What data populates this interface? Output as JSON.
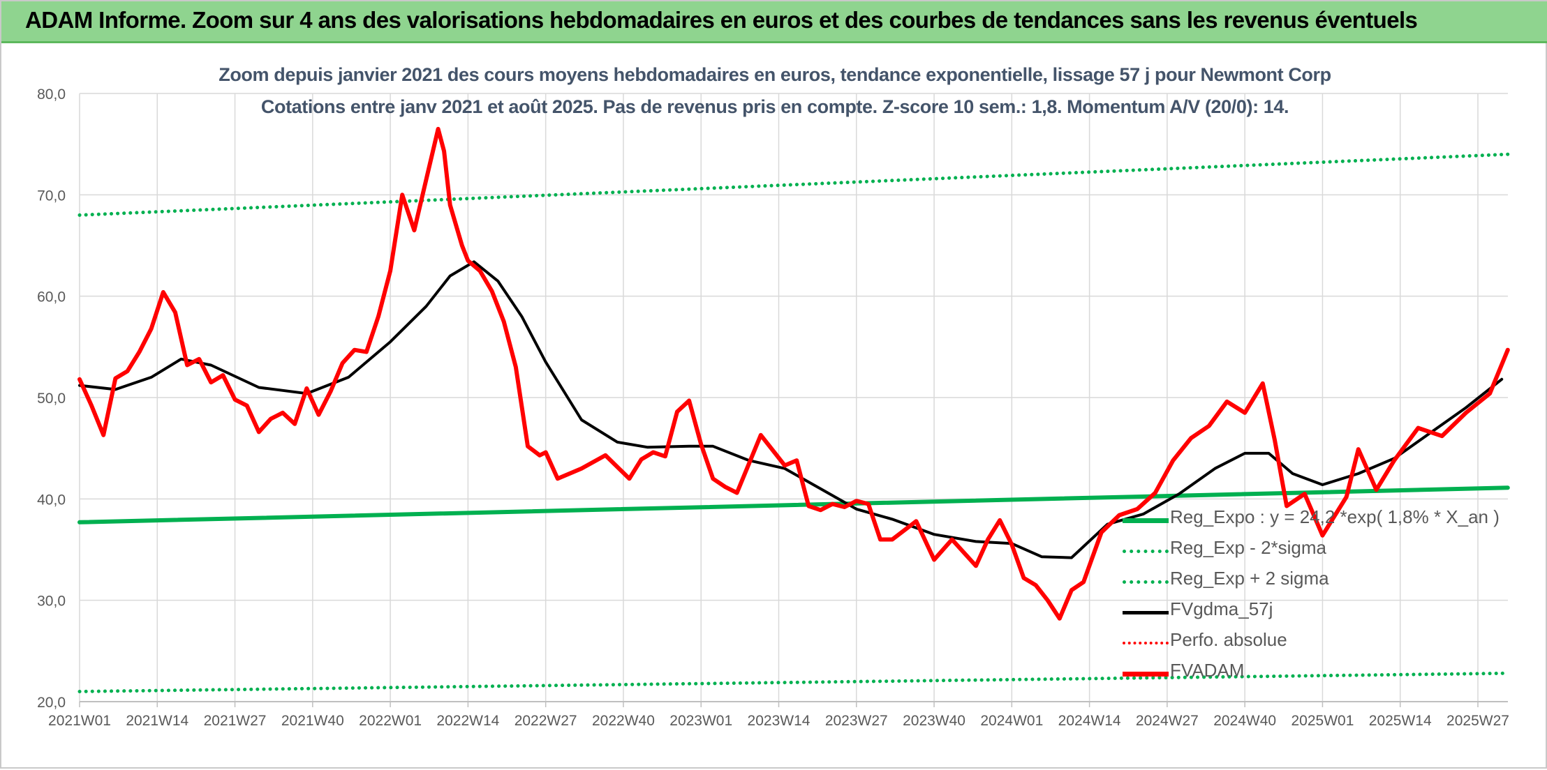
{
  "banner": {
    "title": "ADAM Informe. Zoom sur 4 ans des valorisations hebdomadaires en euros et des courbes de tendances sans les revenus éventuels"
  },
  "chart_data": {
    "type": "line",
    "title": "Zoom depuis janvier 2021 des cours moyens hebdomadaires en euros, tendance exponentielle, lissage 57 j pour Newmont Corp",
    "subtitle": "Cotations entre janv 2021 et août 2025. Pas de revenus pris en compte. Z-score 10 sem.: 1,8. Momentum A/V (20/0): 14.",
    "xlabel": "",
    "ylabel": "",
    "ylim": [
      20,
      80
    ],
    "y_ticks": [
      "20,0",
      "30,0",
      "40,0",
      "50,0",
      "60,0",
      "70,0",
      "80,0"
    ],
    "x_ticks": [
      "2021W01",
      "2021W14",
      "2021W27",
      "2021W40",
      "2022W01",
      "2022W14",
      "2022W27",
      "2022W40",
      "2023W01",
      "2023W14",
      "2023W27",
      "2023W40",
      "2024W01",
      "2024W14",
      "2024W27",
      "2024W40",
      "2025W01",
      "2025W14",
      "2025W27"
    ],
    "x_tick_index": [
      0,
      13,
      26,
      39,
      52,
      65,
      78,
      91,
      104,
      117,
      130,
      143,
      156,
      169,
      182,
      195,
      208,
      221,
      234
    ],
    "n_weeks": 240,
    "grid": true,
    "legend_position": "bottom-right",
    "series": [
      {
        "name": "Reg_Expo : y = 24,2 *exp( 1,8% *  X_an )",
        "style": "solid",
        "color": "#00b050",
        "x": [
          0,
          239
        ],
        "values": [
          37.7,
          41.1
        ]
      },
      {
        "name": "Reg_Exp - 2*sigma",
        "style": "dotted",
        "color": "#00b050",
        "x": [
          0,
          239
        ],
        "values": [
          21.0,
          22.8
        ]
      },
      {
        "name": "Reg_Exp + 2 sigma",
        "style": "dotted",
        "color": "#00b050",
        "x": [
          0,
          239
        ],
        "values": [
          68.0,
          74.0
        ]
      },
      {
        "name": "FVgdma_57j",
        "style": "solid",
        "color": "#000000",
        "x": [
          0,
          6,
          12,
          17,
          22,
          30,
          38,
          45,
          52,
          58,
          62,
          66,
          70,
          74,
          78,
          84,
          90,
          95,
          102,
          106,
          112,
          118,
          124,
          130,
          136,
          143,
          150,
          156,
          161,
          166,
          172,
          178,
          184,
          190,
          195,
          199,
          203,
          208,
          214,
          220,
          226,
          232,
          238
        ],
        "values": [
          51.2,
          50.8,
          52.0,
          53.8,
          53.2,
          51.0,
          50.4,
          52.0,
          55.5,
          59.0,
          62.0,
          63.4,
          61.5,
          58.0,
          53.5,
          47.8,
          45.6,
          45.1,
          45.2,
          45.2,
          43.8,
          43.0,
          41.0,
          39.0,
          38.0,
          36.5,
          35.8,
          35.6,
          34.3,
          34.2,
          37.5,
          38.5,
          40.5,
          43.0,
          44.5,
          44.5,
          42.5,
          41.4,
          42.5,
          44.0,
          46.5,
          49.0,
          51.8
        ]
      },
      {
        "name": "Perfo. absolue",
        "style": "dotted",
        "color": "#ff0000",
        "x": [],
        "values": []
      },
      {
        "name": "FVADAM",
        "style": "solid",
        "color": "#ff0000",
        "x": [
          0,
          2,
          4,
          6,
          8,
          10,
          12,
          14,
          16,
          18,
          20,
          22,
          24,
          26,
          28,
          30,
          32,
          34,
          36,
          38,
          40,
          42,
          44,
          46,
          48,
          50,
          52,
          54,
          56,
          58,
          60,
          61,
          62,
          64,
          65,
          67,
          69,
          71,
          73,
          75,
          77,
          78,
          80,
          84,
          88,
          92,
          94,
          96,
          98,
          100,
          102,
          104,
          106,
          108,
          110,
          114,
          118,
          120,
          122,
          124,
          126,
          128,
          130,
          132,
          134,
          136,
          140,
          143,
          146,
          150,
          152,
          154,
          156,
          158,
          160,
          162,
          164,
          166,
          168,
          171,
          174,
          177,
          180,
          183,
          186,
          189,
          192,
          195,
          198,
          200,
          202,
          205,
          208,
          212,
          214,
          217,
          220,
          224,
          228,
          232,
          236,
          239
        ],
        "values": [
          51.8,
          49.2,
          46.3,
          51.9,
          52.6,
          54.5,
          56.8,
          60.4,
          58.4,
          53.2,
          53.8,
          51.5,
          52.2,
          49.8,
          49.2,
          46.6,
          47.9,
          48.5,
          47.4,
          50.9,
          48.3,
          50.6,
          53.4,
          54.7,
          54.5,
          58.0,
          62.5,
          70.0,
          66.5,
          71.5,
          76.5,
          74.3,
          69.0,
          65.0,
          63.5,
          62.5,
          60.5,
          57.5,
          53.0,
          45.2,
          44.3,
          44.6,
          42.0,
          43.0,
          44.3,
          42.0,
          43.9,
          44.6,
          44.2,
          48.6,
          49.7,
          45.4,
          42.0,
          41.2,
          40.6,
          46.3,
          43.3,
          43.8,
          39.3,
          38.9,
          39.5,
          39.2,
          39.8,
          39.5,
          36.0,
          36.0,
          37.8,
          34.0,
          36.0,
          33.4,
          36.0,
          37.9,
          35.5,
          32.2,
          31.5,
          30.0,
          28.2,
          31.0,
          31.8,
          36.7,
          38.4,
          39.0,
          40.6,
          43.8,
          46.0,
          47.2,
          49.6,
          48.5,
          51.4,
          45.8,
          39.3,
          40.5,
          36.4,
          40.2,
          44.9,
          40.9,
          43.8,
          47.0,
          46.2,
          48.5,
          50.4,
          54.7
        ]
      }
    ]
  }
}
